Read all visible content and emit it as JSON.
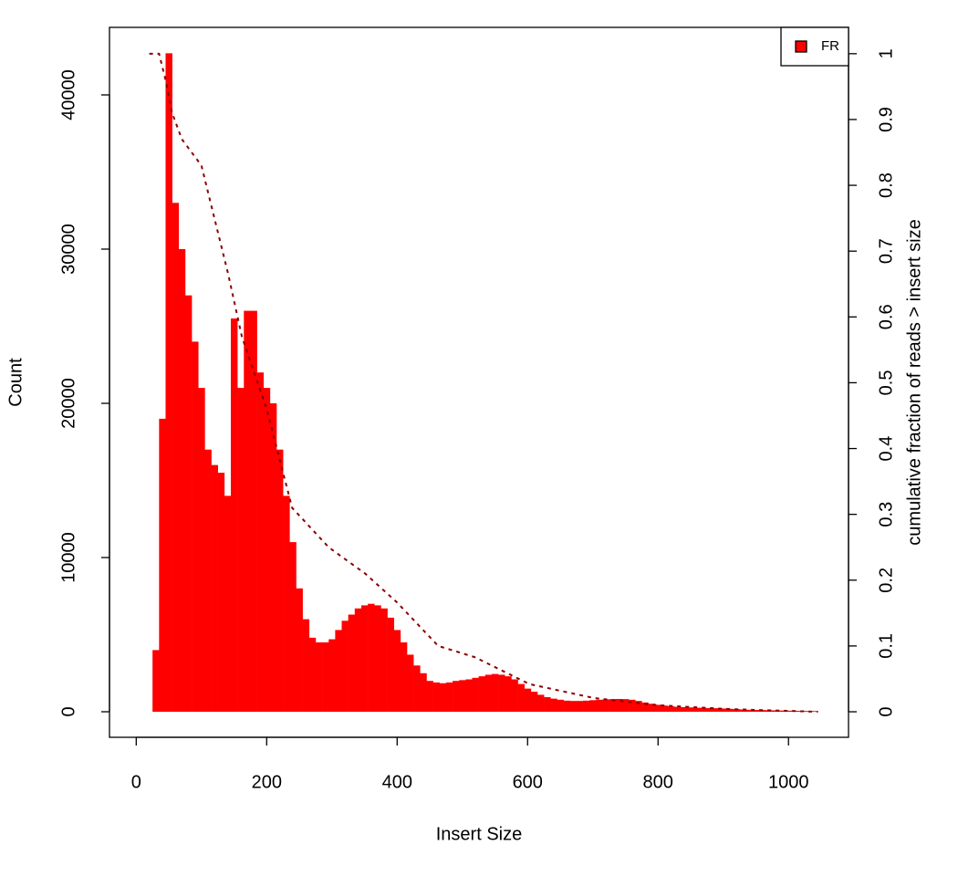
{
  "chart_data": {
    "type": "histogram",
    "xlabel": "Insert Size",
    "ylabel": "Count",
    "y2label": "cumulative fraction of reads > insert size",
    "xlim": [
      -41,
      1092
    ],
    "ylim": [
      -1657,
      44379
    ],
    "y2lim": [
      -0.0388,
      1.04
    ],
    "xticks": [
      0,
      200,
      400,
      600,
      800,
      1000
    ],
    "yticks": [
      0,
      10000,
      20000,
      30000,
      40000
    ],
    "y2ticks": [
      0,
      0.1,
      0.2,
      0.3,
      0.4,
      0.5,
      0.6,
      0.7,
      0.8,
      0.9,
      1
    ],
    "legend": "topright",
    "series": [
      {
        "name": "FR",
        "color": "#ff0000",
        "x": [
          20,
          30,
          40,
          50,
          60,
          70,
          80,
          90,
          100,
          110,
          120,
          130,
          140,
          150,
          160,
          170,
          180,
          190,
          200,
          210,
          220,
          230,
          240,
          250,
          260,
          270,
          280,
          290,
          300,
          310,
          320,
          330,
          340,
          350,
          360,
          370,
          380,
          390,
          400,
          410,
          420,
          430,
          440,
          450,
          460,
          470,
          480,
          490,
          500,
          510,
          520,
          530,
          540,
          550,
          560,
          570,
          580,
          590,
          600,
          610,
          620,
          630,
          640,
          650,
          660,
          670,
          680,
          690,
          700,
          710,
          720,
          730,
          740,
          750,
          760,
          770,
          780,
          790,
          800,
          810,
          820,
          830,
          840,
          850,
          860,
          870,
          880,
          890,
          900,
          910,
          920,
          930,
          940,
          950,
          960,
          970,
          980,
          990,
          1000,
          1010,
          1020,
          1030,
          1040
        ],
        "values": [
          0,
          4000,
          19000,
          42700,
          33000,
          30000,
          27000,
          24000,
          21000,
          17000,
          16000,
          15500,
          14000,
          25500,
          21000,
          26000,
          26000,
          22000,
          21000,
          20000,
          17000,
          14000,
          11000,
          8000,
          6000,
          4800,
          4500,
          4500,
          4700,
          5300,
          5900,
          6300,
          6700,
          6900,
          7000,
          6900,
          6700,
          6100,
          5300,
          4500,
          3700,
          3000,
          2500,
          2000,
          1900,
          1850,
          1900,
          2000,
          2050,
          2100,
          2200,
          2300,
          2400,
          2450,
          2400,
          2300,
          2100,
          1800,
          1500,
          1300,
          1100,
          950,
          850,
          780,
          720,
          700,
          700,
          720,
          750,
          780,
          800,
          820,
          830,
          820,
          780,
          700,
          600,
          520,
          450,
          400,
          350,
          320,
          300,
          280,
          260,
          250,
          240,
          230,
          210,
          190,
          170,
          150,
          130,
          120,
          110,
          100,
          90,
          80,
          70,
          60,
          55,
          50,
          45
        ]
      },
      {
        "color": "#8b0000",
        "axis": "y2",
        "style": "dashed",
        "x": [
          20,
          35,
          45,
          55,
          70,
          100,
          141,
          162,
          200,
          239,
          295,
          351,
          400,
          463,
          519,
          603,
          701,
          799,
          910,
          1045
        ],
        "values": [
          1,
          1,
          0.96,
          0.91,
          0.87,
          0.83,
          0.665,
          0.57,
          0.46,
          0.31,
          0.25,
          0.21,
          0.166,
          0.1,
          0.083,
          0.042,
          0.021,
          0.01,
          0.004,
          0
        ]
      }
    ]
  }
}
